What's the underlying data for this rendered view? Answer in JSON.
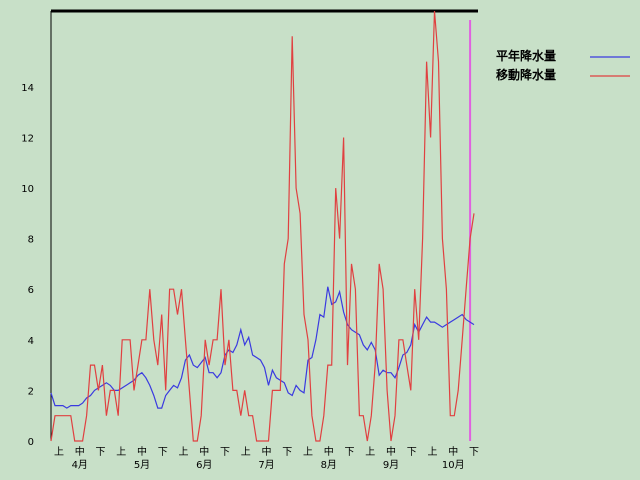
{
  "chart_data": {
    "type": "line",
    "ylim": [
      0,
      17
    ],
    "y_ticks": [
      0,
      2,
      4,
      6,
      8,
      10,
      12,
      14
    ],
    "x_range": [
      0,
      108
    ],
    "period_ticks": [
      "上",
      "中",
      "下",
      "上",
      "中",
      "下",
      "上",
      "中",
      "下",
      "上",
      "中",
      "下",
      "上",
      "中",
      "下",
      "上",
      "中",
      "下",
      "上",
      "中",
      "下"
    ],
    "months": [
      "4月",
      "5月",
      "6月",
      "7月",
      "8月",
      "9月",
      "10月"
    ],
    "legend_position": "top-right",
    "current_marker_x": 106,
    "series": [
      {
        "name": "平年降水量",
        "color": "#3a3ae0",
        "x": [
          0,
          1,
          2,
          3,
          4,
          5,
          6,
          7,
          8,
          9,
          10,
          11,
          12,
          13,
          14,
          15,
          16,
          17,
          18,
          19,
          20,
          21,
          22,
          23,
          24,
          25,
          26,
          27,
          28,
          29,
          30,
          31,
          32,
          33,
          34,
          35,
          36,
          37,
          38,
          39,
          40,
          41,
          42,
          43,
          44,
          45,
          46,
          47,
          48,
          49,
          50,
          51,
          52,
          53,
          54,
          55,
          56,
          57,
          58,
          59,
          60,
          61,
          62,
          63,
          64,
          65,
          66,
          67,
          68,
          69,
          70,
          71,
          72,
          73,
          74,
          75,
          76,
          77,
          78,
          79,
          80,
          81,
          82,
          83,
          84,
          85,
          86,
          87,
          88,
          89,
          90,
          91,
          92,
          93,
          94,
          95,
          96,
          97,
          98,
          99,
          100,
          101,
          102,
          103,
          104,
          105,
          106,
          107
        ],
        "y": [
          1.9,
          1.4,
          1.4,
          1.4,
          1.3,
          1.4,
          1.4,
          1.4,
          1.5,
          1.7,
          1.8,
          2.0,
          2.1,
          2.2,
          2.3,
          2.2,
          2.0,
          2.0,
          2.1,
          2.2,
          2.3,
          2.4,
          2.6,
          2.7,
          2.5,
          2.2,
          1.8,
          1.3,
          1.3,
          1.8,
          2.0,
          2.2,
          2.1,
          2.5,
          3.2,
          3.4,
          3.0,
          2.9,
          3.1,
          3.3,
          2.7,
          2.7,
          2.5,
          2.7,
          3.4,
          3.6,
          3.5,
          3.8,
          4.4,
          3.8,
          4.1,
          3.4,
          3.3,
          3.2,
          2.9,
          2.2,
          2.8,
          2.5,
          2.4,
          2.3,
          1.9,
          1.8,
          2.2,
          2.0,
          1.9,
          3.2,
          3.3,
          4.0,
          5.0,
          4.9,
          6.1,
          5.4,
          5.5,
          5.9,
          5.1,
          4.6,
          4.4,
          4.3,
          4.2,
          3.8,
          3.6,
          3.9,
          3.6,
          2.6,
          2.8,
          2.7,
          2.7,
          2.5,
          2.9,
          3.4,
          3.5,
          3.8,
          4.6,
          4.3,
          4.6,
          4.9,
          4.7,
          4.7,
          4.6,
          4.5,
          4.6,
          4.7,
          4.8,
          4.9,
          5.0,
          4.8,
          4.7,
          4.6
        ]
      },
      {
        "name": "移動降水量",
        "color": "#e04040",
        "x": [
          0,
          1,
          2,
          3,
          4,
          5,
          6,
          7,
          8,
          9,
          10,
          11,
          12,
          13,
          14,
          15,
          16,
          17,
          18,
          19,
          20,
          21,
          22,
          23,
          24,
          25,
          26,
          27,
          28,
          29,
          30,
          31,
          32,
          33,
          34,
          35,
          36,
          37,
          38,
          39,
          40,
          41,
          42,
          43,
          44,
          45,
          46,
          47,
          48,
          49,
          50,
          51,
          52,
          53,
          54,
          55,
          56,
          57,
          58,
          59,
          60,
          61,
          62,
          63,
          64,
          65,
          66,
          67,
          68,
          69,
          70,
          71,
          72,
          73,
          74,
          75,
          76,
          77,
          78,
          79,
          80,
          81,
          82,
          83,
          84,
          85,
          86,
          87,
          88,
          89,
          90,
          91,
          92,
          93,
          94,
          95,
          96,
          97,
          98,
          99,
          100,
          101,
          102,
          103,
          104,
          105,
          106,
          107
        ],
        "y": [
          0,
          1,
          1,
          1,
          1,
          1,
          0,
          0,
          0,
          1,
          3,
          3,
          2,
          3,
          1,
          2,
          2,
          1,
          4,
          4,
          4,
          2,
          3,
          4,
          4,
          6,
          4,
          3,
          5,
          2,
          6,
          6,
          5,
          6,
          4,
          2,
          0,
          0,
          1,
          4,
          3,
          4,
          4,
          6,
          3,
          4,
          2,
          2,
          1,
          2,
          1,
          1,
          0,
          0,
          0,
          0,
          2,
          2,
          2,
          7,
          8,
          16,
          10,
          9,
          5,
          4,
          1,
          0,
          0,
          1,
          3,
          3,
          10,
          8,
          12,
          3,
          7,
          6,
          1,
          1,
          0,
          1,
          3,
          7,
          6,
          2,
          0,
          1,
          4,
          4,
          3,
          2,
          6,
          4,
          8,
          15,
          12,
          17,
          15,
          8,
          6,
          1,
          1,
          2,
          4,
          6,
          8,
          9
        ]
      }
    ]
  }
}
